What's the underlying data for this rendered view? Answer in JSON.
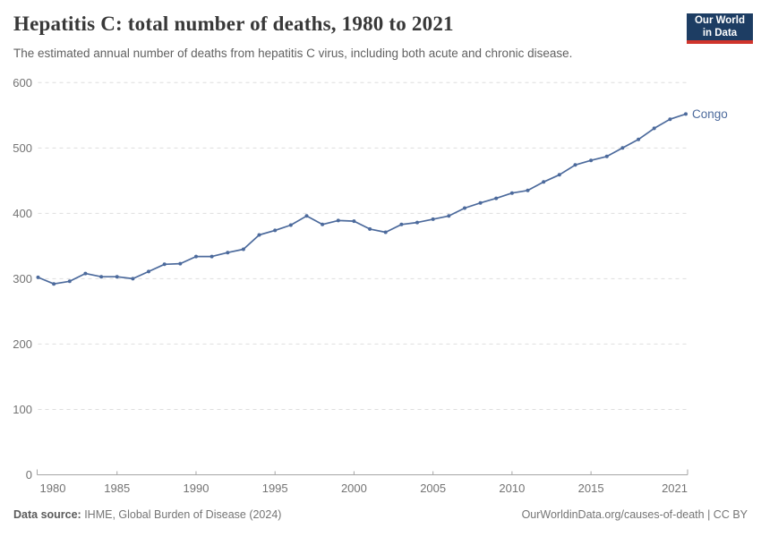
{
  "header": {
    "title": "Hepatitis C: total number of deaths, 1980 to 2021",
    "subtitle": "The estimated annual number of deaths from hepatitis C virus, including both acute and chronic disease.",
    "logo_line1": "Our World",
    "logo_line2": "in Data"
  },
  "footer": {
    "data_source_label": "Data source:",
    "data_source_value": " IHME, Global Burden of Disease (2024)",
    "citation": "OurWorldinData.org/causes-of-death | CC BY"
  },
  "colors": {
    "series": "#4c6a9c",
    "grid": "#dedede",
    "axis": "#a6a6a6",
    "tick_text": "#737373",
    "logo_bg": "#1d3d63",
    "logo_red": "#d0342c"
  },
  "chart_data": {
    "type": "line",
    "title": "Hepatitis C: total number of deaths, 1980 to 2021",
    "xlabel": "",
    "ylabel": "",
    "xlim": [
      1980,
      2021
    ],
    "ylim": [
      0,
      600
    ],
    "x_ticks": [
      1980,
      1985,
      1990,
      1995,
      2000,
      2005,
      2010,
      2015,
      2021
    ],
    "y_ticks": [
      0,
      100,
      200,
      300,
      400,
      500,
      600
    ],
    "grid": "horizontal-dashed",
    "legend_position": "end-of-line-label",
    "x": [
      1980,
      1981,
      1982,
      1983,
      1984,
      1985,
      1986,
      1987,
      1988,
      1989,
      1990,
      1991,
      1992,
      1993,
      1994,
      1995,
      1996,
      1997,
      1998,
      1999,
      2000,
      2001,
      2002,
      2003,
      2004,
      2005,
      2006,
      2007,
      2008,
      2009,
      2010,
      2011,
      2012,
      2013,
      2014,
      2015,
      2016,
      2017,
      2018,
      2019,
      2020,
      2021
    ],
    "series": [
      {
        "name": "Congo",
        "color": "#4c6a9c",
        "values": [
          302,
          292,
          296,
          308,
          303,
          303,
          300,
          311,
          322,
          323,
          334,
          334,
          340,
          345,
          367,
          374,
          382,
          396,
          383,
          389,
          388,
          376,
          371,
          383,
          386,
          391,
          396,
          408,
          416,
          423,
          431,
          435,
          448,
          459,
          474,
          481,
          487,
          500,
          513,
          530,
          544,
          552
        ]
      }
    ]
  }
}
